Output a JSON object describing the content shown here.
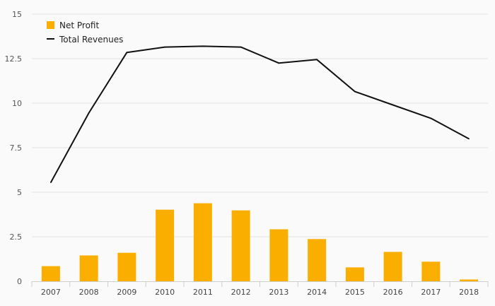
{
  "chart_data": {
    "type": "bar",
    "categories": [
      "2007",
      "2008",
      "2009",
      "2010",
      "2011",
      "2012",
      "2013",
      "2014",
      "2015",
      "2016",
      "2017",
      "2018"
    ],
    "series": [
      {
        "name": "Net Profit",
        "type": "bar",
        "color": "#F9AE00",
        "values": [
          0.85,
          1.45,
          1.6,
          4.02,
          4.38,
          3.98,
          2.92,
          2.37,
          0.78,
          1.65,
          1.1,
          0.1
        ]
      },
      {
        "name": "Total Revenues",
        "type": "line",
        "color": "#111111",
        "values": [
          5.55,
          9.45,
          12.85,
          13.15,
          13.2,
          13.15,
          12.25,
          12.45,
          10.65,
          9.9,
          9.15,
          8.0
        ]
      }
    ],
    "ylim": [
      0,
      15
    ],
    "yticks": [
      0,
      2.5,
      5,
      7.5,
      10,
      12.5,
      15
    ],
    "ytick_labels": [
      "0",
      "2.5",
      "5",
      "7.5",
      "10",
      "12.5",
      "15"
    ],
    "grid": true,
    "legend_position": "top-left",
    "title": "",
    "xlabel": "",
    "ylabel": ""
  }
}
